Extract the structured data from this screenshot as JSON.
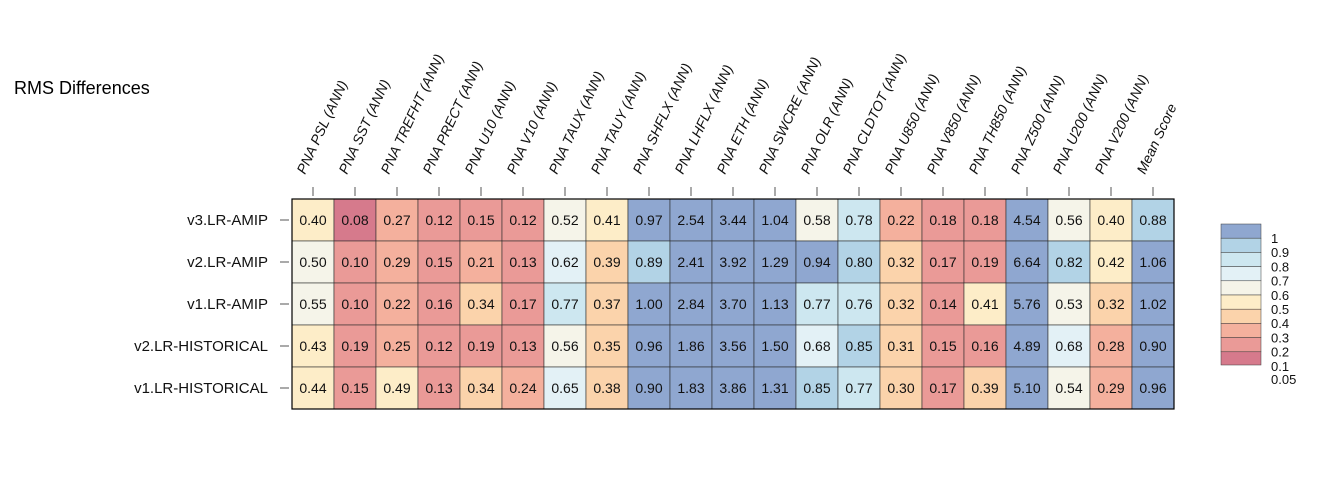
{
  "chart_data": {
    "type": "heatmap",
    "title": "RMS Differences",
    "columns": [
      "PNA PSL (ANN)",
      "PNA SST (ANN)",
      "PNA TREFHT (ANN)",
      "PNA PRECT (ANN)",
      "PNA U10 (ANN)",
      "PNA V10 (ANN)",
      "PNA TAUX (ANN)",
      "PNA TAUY (ANN)",
      "PNA SHFLX (ANN)",
      "PNA LHFLX (ANN)",
      "PNA ETH (ANN)",
      "PNA SWCRE (ANN)",
      "PNA OLR (ANN)",
      "PNA CLDTOT (ANN)",
      "PNA U850 (ANN)",
      "PNA V850 (ANN)",
      "PNA TH850 (ANN)",
      "PNA Z500 (ANN)",
      "PNA U200 (ANN)",
      "PNA V200 (ANN)",
      "Mean Score"
    ],
    "rows": [
      "v3.LR-AMIP",
      "v2.LR-AMIP",
      "v1.LR-AMIP",
      "v2.LR-HISTORICAL",
      "v1.LR-HISTORICAL"
    ],
    "values": [
      [
        "0.40",
        "0.08",
        "0.27",
        "0.12",
        "0.15",
        "0.12",
        "0.52",
        "0.41",
        "0.97",
        "2.54",
        "3.44",
        "1.04",
        "0.58",
        "0.78",
        "0.22",
        "0.18",
        "0.18",
        "4.54",
        "0.56",
        "0.40",
        "0.88"
      ],
      [
        "0.50",
        "0.10",
        "0.29",
        "0.15",
        "0.21",
        "0.13",
        "0.62",
        "0.39",
        "0.89",
        "2.41",
        "3.92",
        "1.29",
        "0.94",
        "0.80",
        "0.32",
        "0.17",
        "0.19",
        "6.64",
        "0.82",
        "0.42",
        "1.06"
      ],
      [
        "0.55",
        "0.10",
        "0.22",
        "0.16",
        "0.34",
        "0.17",
        "0.77",
        "0.37",
        "1.00",
        "2.84",
        "3.70",
        "1.13",
        "0.77",
        "0.76",
        "0.32",
        "0.14",
        "0.41",
        "5.76",
        "0.53",
        "0.32",
        "1.02"
      ],
      [
        "0.43",
        "0.19",
        "0.25",
        "0.12",
        "0.19",
        "0.13",
        "0.56",
        "0.35",
        "0.96",
        "1.86",
        "3.56",
        "1.50",
        "0.68",
        "0.85",
        "0.31",
        "0.15",
        "0.16",
        "4.89",
        "0.68",
        "0.28",
        "0.90"
      ],
      [
        "0.44",
        "0.15",
        "0.49",
        "0.13",
        "0.34",
        "0.24",
        "0.65",
        "0.38",
        "0.90",
        "1.83",
        "3.86",
        "1.31",
        "0.85",
        "0.77",
        "0.30",
        "0.17",
        "0.39",
        "5.10",
        "0.54",
        "0.29",
        "0.96"
      ]
    ],
    "colorbar": {
      "labels": [
        "1",
        "0.9",
        "0.8",
        "0.7",
        "0.6",
        "0.5",
        "0.4",
        "0.3",
        "0.2",
        "0.1",
        "0.05"
      ],
      "bounds": [
        0.05,
        0.1,
        0.2,
        0.3,
        0.4,
        0.5,
        0.6,
        0.7,
        0.8,
        0.9,
        1
      ],
      "colors": [
        "#d67a8c",
        "#ea9a97",
        "#f4b09d",
        "#fbd3ab",
        "#fdedc8",
        "#f5f4e9",
        "#e3f1f6",
        "#cde7f0",
        "#b2d3e6",
        "#8fa7d0"
      ]
    }
  }
}
